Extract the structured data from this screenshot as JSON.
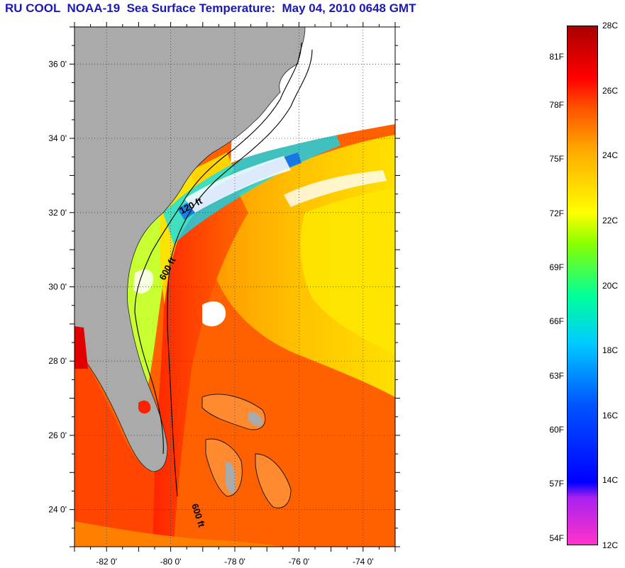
{
  "title": "RU COOL  NOAA-19  Sea Surface Temperature:  May 04, 2010 0648 GMT",
  "map": {
    "lon_range": [
      -83,
      -73
    ],
    "lat_range": [
      23,
      37
    ],
    "lat_labels": [
      {
        "lat": 36,
        "text": "36 0'"
      },
      {
        "lat": 34,
        "text": "34 0'"
      },
      {
        "lat": 32,
        "text": "32 0'"
      },
      {
        "lat": 30,
        "text": "30 0'"
      },
      {
        "lat": 28,
        "text": "28 0'"
      },
      {
        "lat": 26,
        "text": "26 0'"
      },
      {
        "lat": 24,
        "text": "24 0'"
      }
    ],
    "lon_labels": [
      {
        "lon": -82,
        "text": "-82 0'"
      },
      {
        "lon": -80,
        "text": "-80 0'"
      },
      {
        "lon": -78,
        "text": "-78 0'"
      },
      {
        "lon": -76,
        "text": "-76 0'"
      },
      {
        "lon": -74,
        "text": "-74 0'"
      }
    ],
    "isobath_labels": [
      "120 ft",
      "600 ft",
      "600 ft"
    ],
    "colors": {
      "land": "#aaaaaa",
      "cloud": "#ffffff",
      "warm_water": "#ff6a00",
      "gulf_stream": "#ff2a00",
      "offshore": "#ffc800",
      "shelf": "#c8ff30"
    }
  },
  "colorbar": {
    "range_c": [
      12,
      28
    ],
    "celsius_labels": [
      "28C",
      "26C",
      "24C",
      "22C",
      "20C",
      "18C",
      "16C",
      "14C",
      "12C"
    ],
    "fahrenheit_labels": [
      "81F",
      "78F",
      "75F",
      "72F",
      "69F",
      "66F",
      "63F",
      "60F",
      "57F",
      "54F"
    ]
  }
}
